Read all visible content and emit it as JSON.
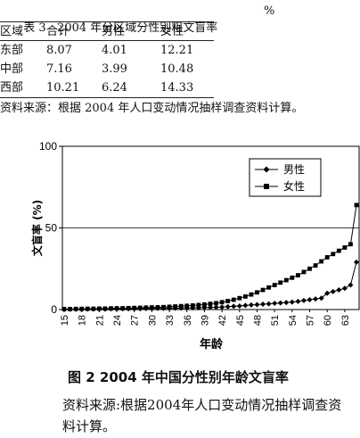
{
  "table": {
    "title": "表 3   2004 年分区域分性别粗文盲率",
    "unit": "%",
    "header": [
      "区域",
      "合计",
      "男性",
      "女性"
    ],
    "rows": [
      [
        "东部",
        "8.07",
        "4.01",
        "12.21"
      ],
      [
        "中部",
        "7.16",
        "3.99",
        "10.48"
      ],
      [
        "西部",
        "10.21",
        "6.24",
        "14.33"
      ]
    ],
    "source": "资料来源：根据 2004 年人口变动情况抽样调查资料计算。"
  },
  "figure": {
    "caption": "图 2   2004 年中国分性别年龄文盲率",
    "source": "资料来源:根据2004年人口变动情况抽样调查资料计算。"
  },
  "chart_data": {
    "type": "line",
    "xlabel": "年龄",
    "ylabel": "文盲率 (%)",
    "ylim": [
      0,
      100
    ],
    "y_ticks": [
      "0",
      "50",
      "100"
    ],
    "x_ticks": [
      "15",
      "18",
      "21",
      "24",
      "27",
      "30",
      "33",
      "36",
      "39",
      "42",
      "45",
      "48",
      "51",
      "54",
      "57",
      "60",
      "63"
    ],
    "legend_position": "top-right",
    "gridline_at": 50,
    "x": [
      15,
      16,
      17,
      18,
      19,
      20,
      21,
      22,
      23,
      24,
      25,
      26,
      27,
      28,
      29,
      30,
      31,
      32,
      33,
      34,
      35,
      36,
      37,
      38,
      39,
      40,
      41,
      42,
      43,
      44,
      45,
      46,
      47,
      48,
      49,
      50,
      51,
      52,
      53,
      54,
      55,
      56,
      57,
      58,
      59,
      60,
      61,
      62,
      63,
      64,
      65
    ],
    "series": [
      {
        "name": "男性",
        "marker": "diamond",
        "values": [
          0.2,
          0.2,
          0.2,
          0.2,
          0.3,
          0.3,
          0.3,
          0.3,
          0.4,
          0.4,
          0.4,
          0.5,
          0.5,
          0.5,
          0.6,
          0.6,
          0.7,
          0.7,
          0.8,
          0.8,
          0.9,
          1.0,
          1.0,
          1.1,
          1.2,
          1.3,
          1.4,
          1.5,
          1.8,
          2.0,
          2.2,
          2.5,
          2.8,
          3.0,
          3.3,
          3.5,
          3.8,
          4.0,
          4.3,
          4.6,
          5.0,
          5.5,
          6.0,
          6.5,
          7.0,
          10.0,
          11.0,
          12.0,
          13.0,
          15.0,
          29.0
        ]
      },
      {
        "name": "女性",
        "marker": "square",
        "values": [
          0.3,
          0.3,
          0.4,
          0.4,
          0.5,
          0.5,
          0.6,
          0.6,
          0.7,
          0.8,
          0.8,
          0.9,
          1.0,
          1.1,
          1.2,
          1.3,
          1.4,
          1.5,
          1.7,
          1.9,
          2.1,
          2.3,
          2.5,
          2.8,
          3.1,
          3.5,
          3.9,
          4.5,
          5.2,
          6.0,
          7.0,
          8.0,
          9.2,
          10.5,
          12.0,
          13.5,
          15.0,
          16.5,
          18.0,
          19.5,
          21.0,
          23.0,
          25.0,
          27.0,
          29.5,
          32.0,
          34.0,
          36.0,
          38.0,
          40.0,
          64.0
        ]
      }
    ]
  }
}
